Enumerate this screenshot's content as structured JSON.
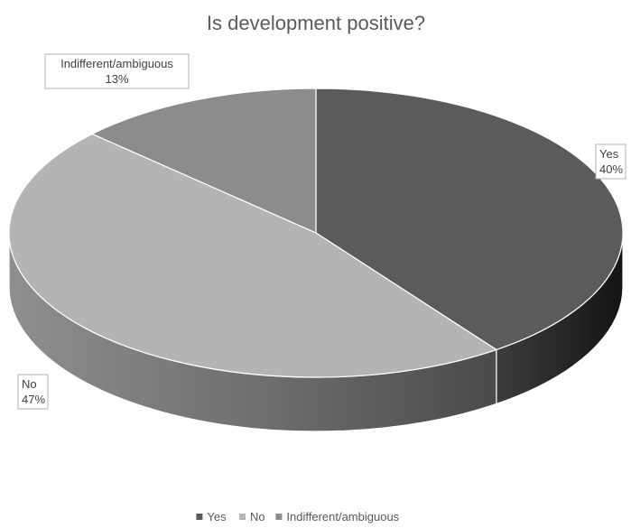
{
  "chart_data": {
    "type": "pie",
    "title": "Is development positive?",
    "categories": [
      "Yes",
      "No",
      "Indifferent/ambiguous"
    ],
    "values": [
      40,
      47,
      13
    ],
    "data_labels": [
      {
        "category": "Yes",
        "percent": "40%"
      },
      {
        "category": "No",
        "percent": "47%"
      },
      {
        "category": "Indifferent/ambiguous",
        "percent": "13%"
      }
    ],
    "legend": {
      "placement": "bottom",
      "entries": [
        "Yes",
        "No",
        "Indifferent/ambiguous"
      ]
    },
    "style": "3d"
  },
  "colors": {
    "yes": "#5b5b5b",
    "no": "#b4b4b4",
    "indifferent": "#8c8c8c"
  }
}
